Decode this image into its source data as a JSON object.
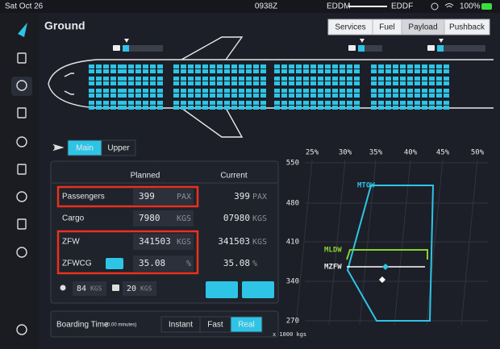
{
  "status": {
    "date": "Sat Oct 26",
    "time": "0938Z",
    "origin": "EDDM",
    "destination": "EDDF",
    "battery": "100%"
  },
  "header": {
    "title": "Ground",
    "tabs": [
      "Services",
      "Fuel",
      "Payload",
      "Pushback"
    ]
  },
  "deck_tabs": [
    "Main",
    "Upper"
  ],
  "loadsheet": {
    "columns": [
      "Planned",
      "Current"
    ],
    "rows": [
      {
        "label": "Passengers",
        "planned": 399,
        "planned_unit": "PAX",
        "current": 399,
        "current_unit": "PAX"
      },
      {
        "label": "Cargo",
        "planned": 7980,
        "planned_unit": "KGS",
        "current": "07980",
        "current_unit": "KGS"
      },
      {
        "label": "ZFW",
        "planned": 341503,
        "planned_unit": "KGS",
        "current": 341503,
        "current_unit": "KGS"
      },
      {
        "label": "ZFWCG",
        "planned": 35.08,
        "planned_unit": "%",
        "current": 35.08,
        "current_unit": "%"
      }
    ],
    "pax_weight": 84,
    "pax_unit": "KGS",
    "bag_weight": 20,
    "bag_unit": "KGS"
  },
  "boarding": {
    "label": "Boarding Time",
    "duration": "(0.00 minutes)",
    "options": [
      "Instant",
      "Fast",
      "Real"
    ]
  },
  "envelope": {
    "x_labels": [
      "25%",
      "30%",
      "35%",
      "40%",
      "45%",
      "50%"
    ],
    "y_labels": [
      "550",
      "480",
      "410",
      "340",
      "270"
    ],
    "unit": "x 1000 kgs",
    "limits": [
      "MTOW",
      "MLDW",
      "MZFW"
    ]
  }
}
